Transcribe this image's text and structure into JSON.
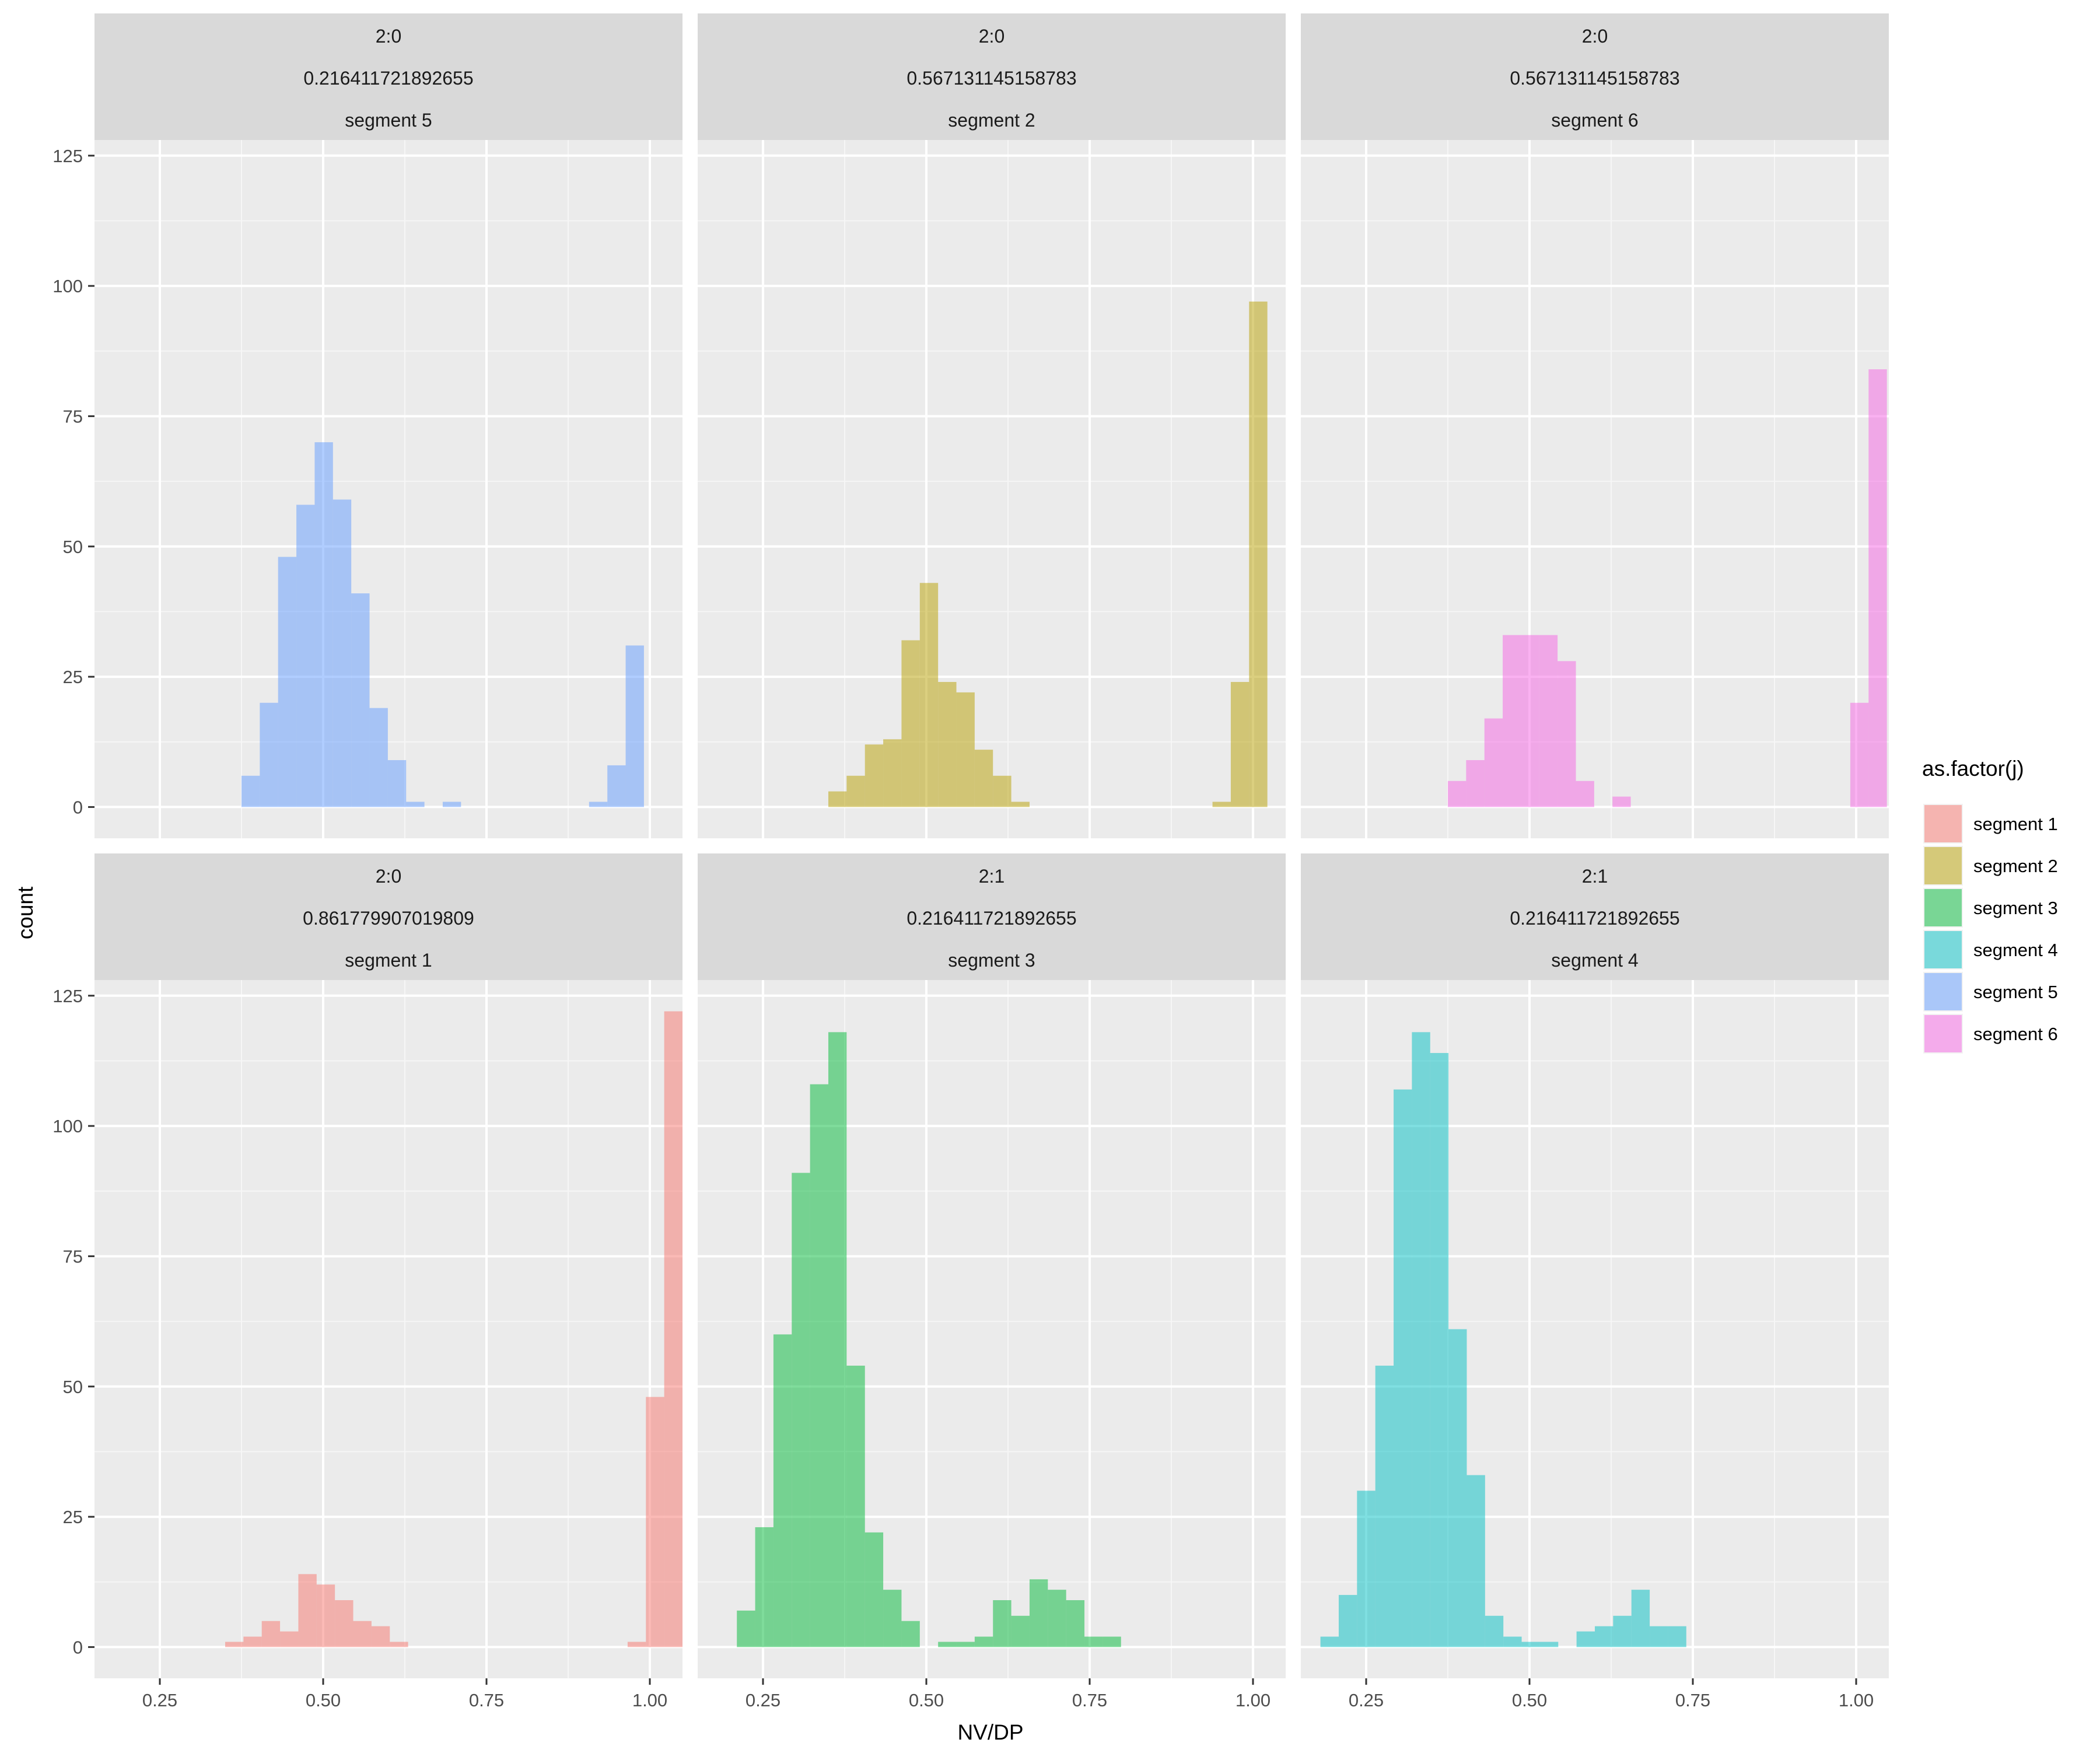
{
  "chart_data": {
    "type": "histogram-facets",
    "xlabel": "NV/DP",
    "ylabel": "count",
    "xlim": [
      0.15,
      1.05
    ],
    "ylim": [
      -6,
      128
    ],
    "x_ticks": [
      0.25,
      0.5,
      0.75,
      1.0
    ],
    "x_tick_labels": [
      "0.25",
      "0.50",
      "0.75",
      "1.00"
    ],
    "y_ticks": [
      0,
      25,
      50,
      75,
      100,
      125
    ],
    "y_tick_labels": [
      "0",
      "25",
      "50",
      "75",
      "100",
      "125"
    ],
    "bin_width": 0.028,
    "grid": true,
    "legend": {
      "title": "as.factor(j)",
      "placement": "right",
      "items": [
        {
          "label": "segment 1",
          "color": "#F8766D"
        },
        {
          "label": "segment 2",
          "color": "#B79F00"
        },
        {
          "label": "segment 3",
          "color": "#00BA38"
        },
        {
          "label": "segment 4",
          "color": "#00BFC4"
        },
        {
          "label": "segment 5",
          "color": "#619CFF"
        },
        {
          "label": "segment 6",
          "color": "#F564E3"
        }
      ]
    },
    "panels": [
      {
        "strip": [
          "2:0",
          "0.216411721892655",
          "segment 5"
        ],
        "segment": "segment 5",
        "color": "#619CFF",
        "x_start": 0.375,
        "counts": [
          6,
          20,
          48,
          58,
          70,
          59,
          41,
          19,
          9,
          1,
          0,
          1,
          0,
          0,
          0,
          0,
          0,
          0,
          0,
          1,
          8,
          31
        ]
      },
      {
        "strip": [
          "2:0",
          "0.567131145158783",
          "segment 2"
        ],
        "segment": "segment 2",
        "color": "#B79F00",
        "x_start": 0.35,
        "counts": [
          3,
          6,
          12,
          13,
          32,
          43,
          24,
          22,
          11,
          6,
          1,
          0,
          0,
          0,
          0,
          0,
          0,
          0,
          0,
          0,
          0,
          1,
          24,
          97
        ]
      },
      {
        "strip": [
          "2:0",
          "0.567131145158783",
          "segment 6"
        ],
        "segment": "segment 6",
        "color": "#F564E3",
        "x_start": 0.375,
        "counts": [
          5,
          9,
          17,
          33,
          33,
          33,
          28,
          5,
          0,
          2,
          0,
          0,
          0,
          0,
          0,
          0,
          0,
          0,
          0,
          0,
          0,
          0,
          20,
          84
        ]
      },
      {
        "strip": [
          "2:0",
          "0.861779907019809",
          "segment 1"
        ],
        "segment": "segment 1",
        "color": "#F8766D",
        "x_start": 0.35,
        "counts": [
          1,
          2,
          5,
          3,
          14,
          12,
          9,
          5,
          4,
          1,
          0,
          0,
          0,
          0,
          0,
          0,
          0,
          0,
          0,
          0,
          0,
          0,
          1,
          48,
          122
        ]
      },
      {
        "strip": [
          "2:1",
          "0.216411721892655",
          "segment 3"
        ],
        "segment": "segment 3",
        "color": "#00BA38",
        "x_start": 0.21,
        "counts": [
          7,
          23,
          60,
          91,
          108,
          118,
          54,
          22,
          11,
          5,
          0,
          1,
          1,
          2,
          9,
          6,
          13,
          11,
          9,
          2,
          2
        ]
      },
      {
        "strip": [
          "2:1",
          "0.216411721892655",
          "segment 4"
        ],
        "segment": "segment 4",
        "color": "#00BFC4",
        "x_start": 0.18,
        "counts": [
          2,
          10,
          30,
          54,
          107,
          118,
          114,
          61,
          33,
          6,
          2,
          1,
          1,
          0,
          3,
          4,
          6,
          11,
          4,
          4
        ]
      }
    ]
  }
}
